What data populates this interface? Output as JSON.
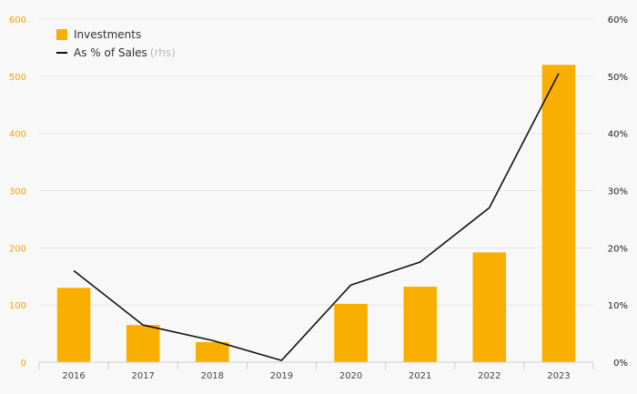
{
  "legend": {
    "bar_label": "Investments",
    "line_label": "As % of Sales",
    "line_suffix": "(rhs)"
  },
  "colors": {
    "bar": "#F9AF00",
    "line": "#111111",
    "left_axis_text": "#F0A500",
    "grid": "#e6e6e6"
  },
  "chart_data": {
    "type": "bar",
    "categories": [
      "2016",
      "2017",
      "2018",
      "2019",
      "2020",
      "2021",
      "2022",
      "2023"
    ],
    "series": [
      {
        "name": "Investments",
        "type": "bar",
        "axis": "left",
        "values": [
          130,
          65,
          35,
          0,
          102,
          132,
          192,
          520
        ]
      },
      {
        "name": "As % of Sales (rhs)",
        "type": "line",
        "axis": "right",
        "values": [
          16,
          6.5,
          3.8,
          0.3,
          13.5,
          17.5,
          27,
          50.5
        ]
      }
    ],
    "y_left": {
      "min": 0,
      "max": 600,
      "ticks": [
        0,
        100,
        200,
        300,
        400,
        500,
        600
      ]
    },
    "y_right": {
      "min": 0,
      "max": 60,
      "ticks": [
        "0%",
        "10%",
        "20%",
        "30%",
        "40%",
        "50%",
        "60%"
      ]
    },
    "grid": true,
    "legend_position": "top-left"
  }
}
